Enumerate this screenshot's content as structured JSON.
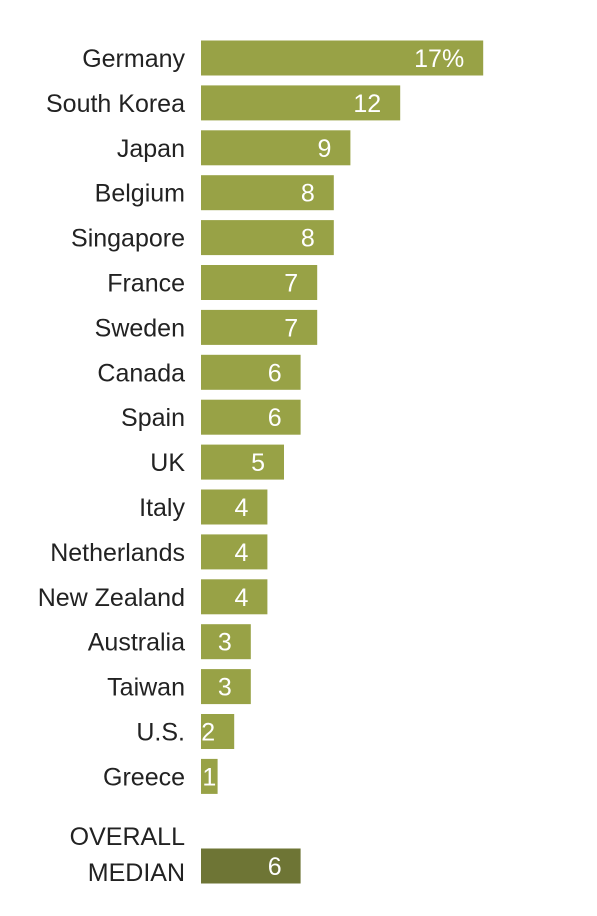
{
  "chart_data": {
    "type": "bar",
    "orientation": "horizontal",
    "categories": [
      "Germany",
      "South Korea",
      "Japan",
      "Belgium",
      "Singapore",
      "France",
      "Sweden",
      "Canada",
      "Spain",
      "UK",
      "Italy",
      "Netherlands",
      "New Zealand",
      "Australia",
      "Taiwan",
      "U.S.",
      "Greece"
    ],
    "values": [
      17,
      12,
      9,
      8,
      8,
      7,
      7,
      6,
      6,
      5,
      4,
      4,
      4,
      3,
      3,
      2,
      1
    ],
    "value_labels": [
      "17%",
      "12",
      "9",
      "8",
      "8",
      "7",
      "7",
      "6",
      "6",
      "5",
      "4",
      "4",
      "4",
      "3",
      "3",
      "2",
      "1"
    ],
    "summary": {
      "label_lines": [
        "OVERALL",
        "MEDIAN"
      ],
      "value": 6,
      "value_label": "6"
    },
    "colors": {
      "bar": "#98a246",
      "summary_bar": "#6e7535",
      "value_text": "#ffffff",
      "label_text": "#222222"
    },
    "grid": false,
    "legend": "none"
  }
}
